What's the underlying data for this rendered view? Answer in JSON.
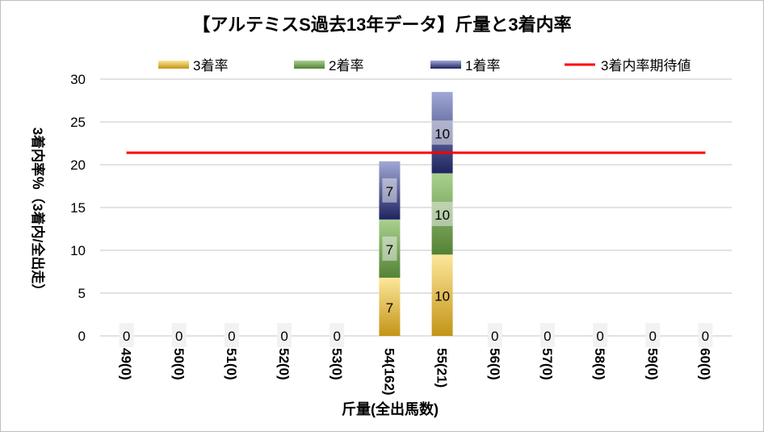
{
  "chart_data": {
    "type": "bar",
    "stacked": true,
    "title": "【アルテミスS過去13年データ】斤量と3着内率",
    "xlabel": "斤量(全出馬数)",
    "ylabel": "3着内率％（3着内/全出走）",
    "ylim": [
      0,
      30
    ],
    "yticks": [
      0,
      5,
      10,
      15,
      20,
      25,
      30
    ],
    "grid": true,
    "legend_position": "top",
    "categories": [
      "49(0)",
      "50(0)",
      "51(0)",
      "52(0)",
      "53(0)",
      "54(162)",
      "55(21)",
      "56(0)",
      "57(0)",
      "58(0)",
      "59(0)",
      "60(0)"
    ],
    "series": [
      {
        "name": "3着率",
        "values": [
          0,
          0,
          0,
          0,
          0,
          6.8,
          9.5,
          0,
          0,
          0,
          0,
          0
        ],
        "labels": [
          "0",
          "0",
          "0",
          "0",
          "0",
          "7",
          "10",
          "0",
          "0",
          "0",
          "0",
          "0"
        ],
        "colors": [
          "#fde79b",
          "#c39416"
        ]
      },
      {
        "name": "2着率",
        "values": [
          0,
          0,
          0,
          0,
          0,
          6.8,
          9.5,
          0,
          0,
          0,
          0,
          0
        ],
        "labels": [
          "",
          "",
          "",
          "",
          "",
          "7",
          "10",
          "",
          "",
          "",
          "",
          ""
        ],
        "colors": [
          "#a9d18e",
          "#548235"
        ]
      },
      {
        "name": "1着率",
        "values": [
          0,
          0,
          0,
          0,
          0,
          6.8,
          9.5,
          0,
          0,
          0,
          0,
          0
        ],
        "labels": [
          "",
          "",
          "",
          "",
          "",
          "7",
          "10",
          "",
          "",
          "",
          "",
          ""
        ],
        "colors": [
          "#a0a8d6",
          "#1f2460"
        ]
      }
    ],
    "reference_line": {
      "name": "3着内率期待値",
      "value": 21.4,
      "color": "#ff0000"
    }
  }
}
